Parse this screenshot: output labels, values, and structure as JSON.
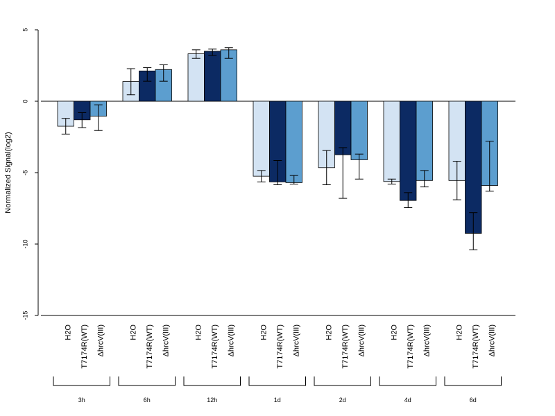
{
  "chart_data": {
    "type": "bar",
    "ylabel": "Normalized Signal(log2)",
    "ylim": [
      -15,
      5
    ],
    "yticks": [
      5,
      0,
      -5,
      -10,
      -15
    ],
    "groups": [
      "3h",
      "6h",
      "12h",
      "1d",
      "2d",
      "4d",
      "6d"
    ],
    "series": [
      {
        "name": "H2O",
        "color": "#d3e3f3",
        "values": [
          -1.75,
          1.38,
          3.32,
          -5.25,
          -4.65,
          -5.62,
          -5.55
        ],
        "err_low": [
          -2.3,
          0.45,
          3.0,
          -5.65,
          -5.85,
          -5.8,
          -6.9
        ],
        "err_high": [
          -1.2,
          2.28,
          3.6,
          -4.85,
          -3.45,
          -5.45,
          -4.2
        ]
      },
      {
        "name": "T7174R(WT)",
        "color": "#0c2a63",
        "values": [
          -1.3,
          2.12,
          3.5,
          -5.65,
          -3.75,
          -6.95,
          -9.25
        ],
        "err_low": [
          -1.85,
          1.4,
          3.2,
          -5.85,
          -6.8,
          -7.45,
          -10.4
        ],
        "err_high": [
          -0.8,
          2.35,
          3.65,
          -4.15,
          -3.25,
          -6.4,
          -7.8
        ]
      },
      {
        "name": "ΔhrcV(III)",
        "color": "#5c9ecf",
        "values": [
          -1.05,
          2.22,
          3.6,
          -5.7,
          -4.1,
          -5.55,
          -5.9
        ],
        "err_low": [
          -2.05,
          1.4,
          3.0,
          -5.8,
          -5.45,
          -6.0,
          -6.3
        ],
        "err_high": [
          -0.25,
          2.55,
          3.75,
          -5.2,
          -3.7,
          -4.85,
          -2.8
        ]
      }
    ]
  }
}
